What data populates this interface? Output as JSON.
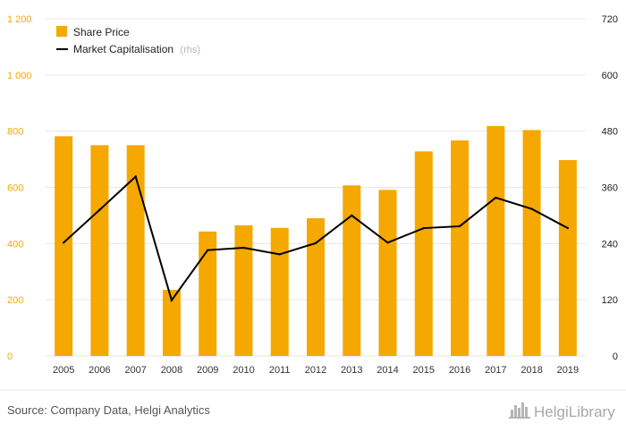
{
  "chart_data": {
    "type": "bar",
    "categories": [
      "2005",
      "2006",
      "2007",
      "2008",
      "2009",
      "2010",
      "2011",
      "2012",
      "2013",
      "2014",
      "2015",
      "2016",
      "2017",
      "2018",
      "2019"
    ],
    "series": [
      {
        "name": "Share Price",
        "type": "bar",
        "axis": "left",
        "color": "#f5a800",
        "values": [
          782,
          750,
          750,
          235,
          443,
          465,
          456,
          490,
          607,
          591,
          728,
          767,
          818,
          804,
          697
        ]
      },
      {
        "name": "Market Capitalisation",
        "type": "line",
        "axis": "right",
        "color": "#000000",
        "values": [
          242,
          312,
          383,
          119,
          226,
          231,
          217,
          241,
          300,
          242,
          273,
          277,
          338,
          314,
          273
        ]
      }
    ],
    "legend_note": "(rhs)",
    "y_left": {
      "min": 0,
      "max": 1200,
      "ticks": [
        0,
        200,
        400,
        600,
        800,
        1000,
        1200
      ],
      "tick_labels": [
        "0",
        "200",
        "400",
        "600",
        "800",
        "1 000",
        "1 200"
      ]
    },
    "y_right": {
      "min": 0,
      "max": 720,
      "ticks": [
        0,
        120,
        240,
        360,
        480,
        600,
        720
      ],
      "tick_labels": [
        "0",
        "120",
        "240",
        "360",
        "480",
        "600",
        "720"
      ]
    },
    "grid": "horizontal",
    "legend_position": "top-left"
  },
  "source_text": "Source: Company Data, Helgi Analytics",
  "brand": {
    "name": "HelgiLibrary",
    "icon": "helgi-logo-icon"
  },
  "colors": {
    "bar": "#f5a800",
    "line": "#000000",
    "grid": "#e6e6e6"
  }
}
